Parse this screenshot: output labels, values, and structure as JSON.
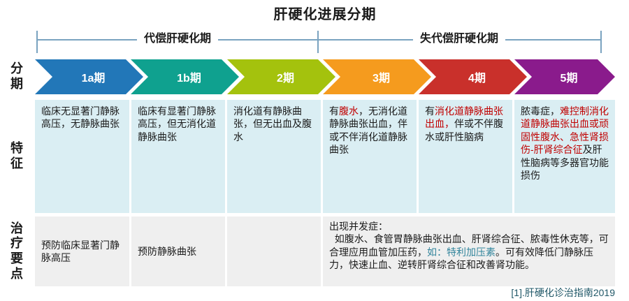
{
  "palette": {
    "ink": "#1a1a1a",
    "red": "#c00000",
    "teal": "#31849b"
  },
  "colors": {
    "bracket_line": "#7aa3c0",
    "feature_cell_bg": "#daeef3",
    "treatment_cell_bg": "#efefef",
    "footer_text": "#215868"
  },
  "title": "肝硬化进展分期",
  "brackets": {
    "compensated": "代偿肝硬化期",
    "decompensated": "失代偿肝硬化期"
  },
  "row_labels": {
    "stage": "分\n期",
    "feature": "特\n征",
    "treatment": "治\n疗\n要\n点"
  },
  "stages": [
    {
      "label": "1a期",
      "color": "#2277b8"
    },
    {
      "label": "1b期",
      "color": "#0fa18f"
    },
    {
      "label": "2期",
      "color": "#a4c20d"
    },
    {
      "label": "3期",
      "color": "#f59b1e"
    },
    {
      "label": "4期",
      "color": "#c9302b"
    },
    {
      "label": "5期",
      "color": "#8a1b8c"
    }
  ],
  "features": [
    {
      "segments": [
        {
          "t": "临床无显著门静脉高压，无静脉曲张",
          "c": "ink"
        }
      ]
    },
    {
      "segments": [
        {
          "t": "临床有显著门静脉高压，但无消化道静脉曲张",
          "c": "ink"
        }
      ]
    },
    {
      "segments": [
        {
          "t": "消化道有静脉曲张，但无出血及腹水",
          "c": "ink"
        }
      ]
    },
    {
      "segments": [
        {
          "t": "有",
          "c": "ink"
        },
        {
          "t": "腹水",
          "c": "red"
        },
        {
          "t": "，无消化道静脉曲张出血，伴或不伴消化道静脉曲张",
          "c": "ink"
        }
      ]
    },
    {
      "segments": [
        {
          "t": "有",
          "c": "ink"
        },
        {
          "t": "消化道静脉曲张出血，",
          "c": "red"
        },
        {
          "t": "伴或不伴腹水或肝性脑病",
          "c": "ink"
        }
      ]
    },
    {
      "segments": [
        {
          "t": "脓毒症，",
          "c": "ink"
        },
        {
          "t": "难控制消化道静脉曲张出血或顽固性腹水、急性肾损伤-肝肾综合征",
          "c": "red"
        },
        {
          "t": "及肝性脑病等多器官功能损伤",
          "c": "ink"
        }
      ]
    }
  ],
  "treatments": {
    "cell_1a": "预防临床显著门静脉高压",
    "cell_1b": "预防静脉曲张",
    "cell_2": "",
    "merged_segments": [
      {
        "t": "出现并发症：\n  如腹水、食管胃静脉曲张出血、肝肾综合征、脓毒性休克等，可合理应用血管加压药，",
        "c": "ink"
      },
      {
        "t": "如：特利加压素",
        "c": "teal"
      },
      {
        "t": "。可有效降低门静脉压力，快速止血、逆转肝肾综合征和改善肾功能。",
        "c": "ink"
      }
    ]
  },
  "footer": "[1].肝硬化诊治指南2019"
}
